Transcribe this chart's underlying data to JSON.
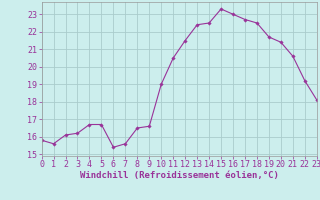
{
  "x": [
    0,
    1,
    2,
    3,
    4,
    5,
    6,
    7,
    8,
    9,
    10,
    11,
    12,
    13,
    14,
    15,
    16,
    17,
    18,
    19,
    20,
    21,
    22,
    23
  ],
  "y": [
    15.8,
    15.6,
    16.1,
    16.2,
    16.7,
    16.7,
    15.4,
    15.6,
    16.5,
    16.6,
    19.0,
    20.5,
    21.5,
    22.4,
    22.5,
    23.3,
    23.0,
    22.7,
    22.5,
    21.7,
    21.4,
    20.6,
    19.2,
    18.1
  ],
  "line_color": "#993399",
  "marker_color": "#993399",
  "bg_color": "#cceeed",
  "grid_color": "#aacccc",
  "xlabel": "Windchill (Refroidissement éolien,°C)",
  "xlim": [
    0,
    23
  ],
  "ylim": [
    14.9,
    23.7
  ],
  "yticks": [
    15,
    16,
    17,
    18,
    19,
    20,
    21,
    22,
    23
  ],
  "xticks": [
    0,
    1,
    2,
    3,
    4,
    5,
    6,
    7,
    8,
    9,
    10,
    11,
    12,
    13,
    14,
    15,
    16,
    17,
    18,
    19,
    20,
    21,
    22,
    23
  ],
  "label_fontsize": 6.5,
  "tick_fontsize": 6.0
}
